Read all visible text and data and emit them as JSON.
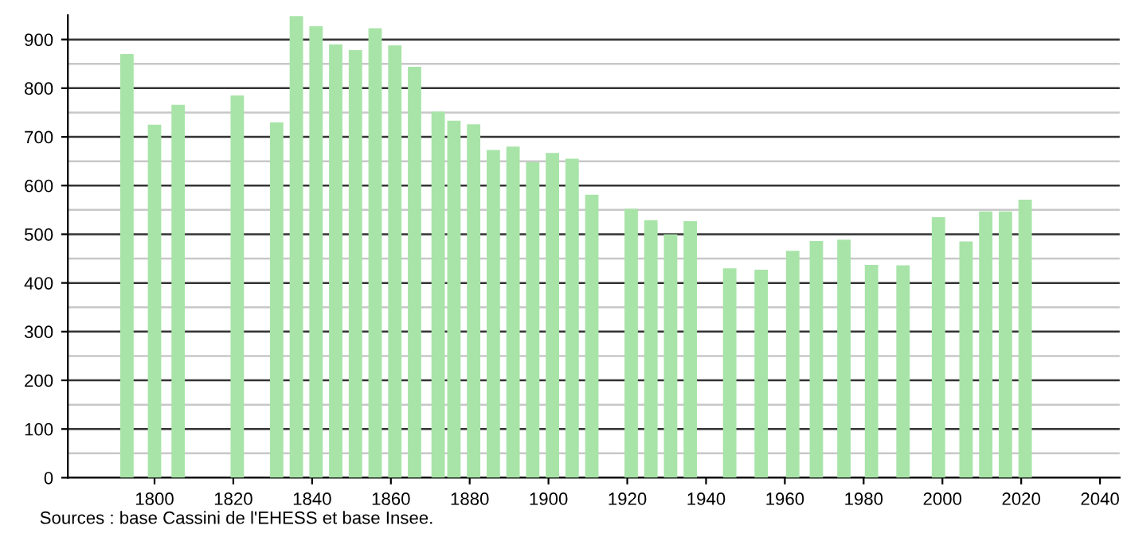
{
  "chart_data": {
    "type": "bar",
    "x": [
      1793,
      1800,
      1806,
      1821,
      1831,
      1836,
      1841,
      1846,
      1851,
      1856,
      1861,
      1866,
      1872,
      1876,
      1881,
      1886,
      1891,
      1896,
      1901,
      1906,
      1911,
      1921,
      1926,
      1931,
      1936,
      1946,
      1954,
      1962,
      1968,
      1975,
      1982,
      1990,
      1999,
      2006,
      2011,
      2016,
      2021
    ],
    "values": [
      870,
      725,
      766,
      785,
      730,
      948,
      927,
      890,
      878,
      923,
      888,
      844,
      752,
      733,
      726,
      673,
      680,
      648,
      667,
      655,
      581,
      552,
      529,
      500,
      527,
      430,
      427,
      466,
      486,
      489,
      437,
      436,
      535,
      485,
      547,
      547,
      571
    ],
    "color": "#a8e4a8",
    "xlim": [
      1778,
      2045
    ],
    "xticks": [
      1800,
      1820,
      1840,
      1860,
      1880,
      1900,
      1920,
      1940,
      1960,
      1980,
      2000,
      2020,
      2040
    ],
    "ylim": [
      0,
      950
    ],
    "yticks": [
      0,
      100,
      200,
      300,
      400,
      500,
      600,
      700,
      800,
      900
    ],
    "grid": "y",
    "annotations": [
      "Sources : base Cassini de l'EHESS et base Insee."
    ]
  }
}
